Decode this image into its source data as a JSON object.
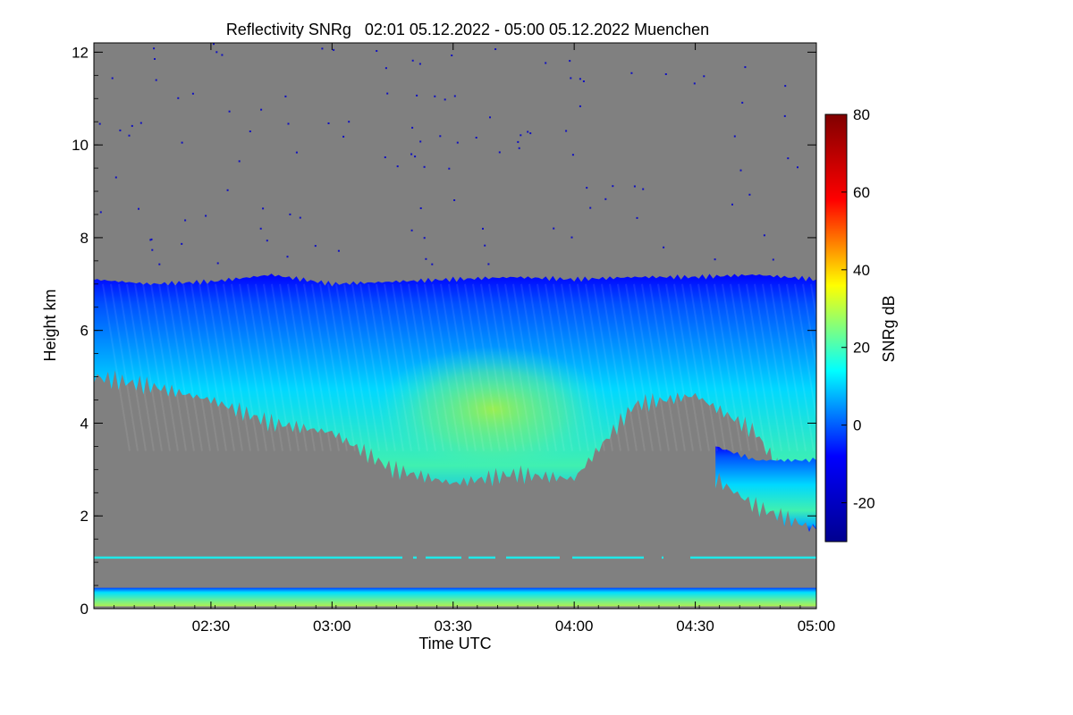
{
  "chart_data": {
    "type": "heatmap",
    "title": "Reflectivity SNRg   02:01 05.12.2022 - 05:00 05.12.2022 Muenchen",
    "xlabel": "Time UTC",
    "ylabel": "Height km",
    "xlim": [
      "02:01",
      "05:00"
    ],
    "ylim": [
      0,
      12.2
    ],
    "x_ticks": [
      "02:30",
      "03:00",
      "03:30",
      "04:00",
      "04:30",
      "05:00"
    ],
    "y_ticks": [
      0,
      2,
      4,
      6,
      8,
      10,
      12
    ],
    "colorbar": {
      "label": "SNRg dB",
      "range": [
        -30,
        80
      ],
      "ticks": [
        -20,
        0,
        20,
        40,
        60,
        80
      ],
      "colormap": [
        "#00008f",
        "#0000ff",
        "#00ffff",
        "#ffff00",
        "#ff0000",
        "#800000"
      ]
    },
    "background_color": "#808080",
    "cloud_layer": {
      "time": [
        "02:01",
        "02:15",
        "02:30",
        "02:45",
        "03:00",
        "03:15",
        "03:30",
        "03:45",
        "04:00",
        "04:15",
        "04:30",
        "04:45",
        "05:00"
      ],
      "top_km": [
        7.1,
        7.0,
        7.05,
        7.2,
        7.0,
        7.05,
        7.1,
        7.15,
        7.1,
        7.15,
        7.15,
        7.2,
        7.1
      ],
      "base_km": [
        5.0,
        4.8,
        4.5,
        4.0,
        3.8,
        3.0,
        2.7,
        2.9,
        2.8,
        4.4,
        4.6,
        3.8,
        1.7
      ],
      "max_snr_db": 25
    },
    "lower_layer": {
      "time": [
        "04:35",
        "04:45",
        "05:00"
      ],
      "top_km": [
        3.5,
        3.2,
        3.2
      ],
      "base_km": [
        2.8,
        2.2,
        1.7
      ]
    },
    "boundary_layer": {
      "top_km": 0.45,
      "snr_db": 15
    },
    "artifact_line": {
      "height_km": 1.1,
      "snr_db": 5
    }
  }
}
